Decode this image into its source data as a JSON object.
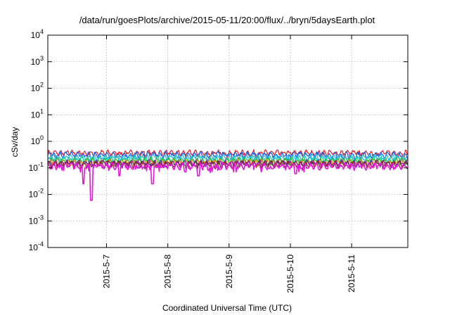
{
  "chart_data": {
    "type": "line",
    "title": "/data/run/goesPlots/archive/2015-05-11/20:00/flux/../bryn/5daysEarth.plot",
    "xlabel": "Coordinated Universal Time (UTC)",
    "ylabel": "cSv/day",
    "yscale": "log",
    "ylim": [
      0.0001,
      10000
    ],
    "y_ticks": [
      {
        "value": 0.0001,
        "base": "10",
        "exp": "-4"
      },
      {
        "value": 0.001,
        "base": "10",
        "exp": "-3"
      },
      {
        "value": 0.01,
        "base": "10",
        "exp": "-2"
      },
      {
        "value": 0.1,
        "base": "10",
        "exp": "-1"
      },
      {
        "value": 1,
        "base": "10",
        "exp": "0"
      },
      {
        "value": 10,
        "base": "10",
        "exp": "1"
      },
      {
        "value": 100,
        "base": "10",
        "exp": "2"
      },
      {
        "value": 1000,
        "base": "10",
        "exp": "3"
      },
      {
        "value": 10000,
        "base": "10",
        "exp": "4"
      }
    ],
    "xlim": [
      "2015-05-06 01:00",
      "2015-05-11 22:00"
    ],
    "x_ticks": [
      "2015-5-7",
      "2015-5-8",
      "2015-5-9",
      "2015-5-10",
      "2015-5-11"
    ],
    "grid": true,
    "legend": "none",
    "series": [
      {
        "color": "#e8232c",
        "level": 0.36,
        "dips": []
      },
      {
        "color": "#1f5de0",
        "level": 0.31,
        "dips": [
          {
            "x": "2015-05-06 18:00",
            "y": 0.22
          },
          {
            "x": "2015-05-09 23:00",
            "y": 0.2
          }
        ]
      },
      {
        "color": "#2ab9e0",
        "level": 0.25,
        "dips": []
      },
      {
        "color": "#19c9a8",
        "level": 0.21,
        "dips": []
      },
      {
        "color": "#2eb82e",
        "level": 0.18,
        "dips": []
      },
      {
        "color": "#e39018",
        "level": 0.16,
        "dips": []
      },
      {
        "color": "#7a1fa8",
        "level": 0.15,
        "dips": []
      },
      {
        "color": "#7b2e2e",
        "level": 0.14,
        "dips": []
      },
      {
        "color": "#e317d8",
        "level": 0.12,
        "dips": [
          {
            "x": "2015-05-06 15:00",
            "y": 0.025
          },
          {
            "x": "2015-05-06 18:00",
            "y": 0.006
          },
          {
            "x": "2015-05-07 05:00",
            "y": 0.05
          },
          {
            "x": "2015-05-07 18:00",
            "y": 0.025
          },
          {
            "x": "2015-05-08 07:00",
            "y": 0.07
          },
          {
            "x": "2015-05-08 12:00",
            "y": 0.05
          },
          {
            "x": "2015-05-10 02:00",
            "y": 0.06
          }
        ]
      }
    ]
  }
}
